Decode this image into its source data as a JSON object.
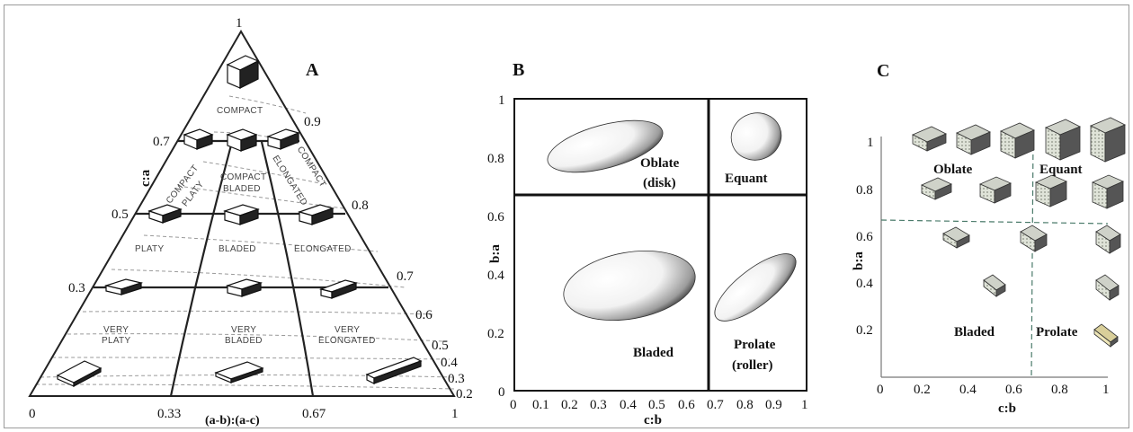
{
  "panelA": {
    "letter": "A",
    "apex": "1",
    "origin": "0",
    "x_033": "0.33",
    "x_067": "0.67",
    "x_1": "1",
    "xlabel": "(a-b):(a-c)",
    "ylabel": "c:a",
    "left_ticks": [
      "0.7",
      "0.5",
      "0.3"
    ],
    "right_ticks": [
      "0.9",
      "0.8",
      "0.7",
      "0.6",
      "0.5",
      "0.4",
      "0.3",
      "0.2"
    ],
    "regions": {
      "compact": "COMPACT",
      "compact_platy_1": "COMPACT",
      "compact_platy_2": "PLATY",
      "compact_bladed_1": "COMPACT",
      "compact_bladed_2": "BLADED",
      "compact_elongated_1": "COMPACT",
      "compact_elongated_2": "ELONGATED",
      "platy": "PLATY",
      "bladed": "BLADED",
      "elongated": "ELONGATED",
      "very_platy_1": "VERY",
      "very_platy_2": "PLATY",
      "very_bladed_1": "VERY",
      "very_bladed_2": "BLADED",
      "very_elongated_1": "VERY",
      "very_elongated_2": "ELONGATED"
    }
  },
  "panelB": {
    "letter": "B",
    "ylabel": "b:a",
    "xlabel": "c:b",
    "yticks": [
      "1",
      "0.8",
      "0.6",
      "0.4",
      "0.2",
      "0"
    ],
    "xticks": [
      "0",
      "0.1",
      "0.2",
      "0.3",
      "0.4",
      "0.5",
      "0.6",
      "0.7",
      "0.8",
      "0.9",
      "1"
    ],
    "oblate_1": "Oblate",
    "oblate_2": "(disk)",
    "equant": "Equant",
    "bladed": "Bladed",
    "prolate_1": "Prolate",
    "prolate_2": "(roller)"
  },
  "panelC": {
    "letter": "C",
    "ylabel": "b:a",
    "xlabel": "c:b",
    "yticks": [
      "1",
      "0.8",
      "0.6",
      "0.4",
      "0.2"
    ],
    "xticks": [
      "0",
      "0.2",
      "0.4",
      "0.6",
      "0.8",
      "1"
    ],
    "oblate": "Oblate",
    "equant": "Equant",
    "bladed": "Bladed",
    "prolate": "Prolate"
  }
}
